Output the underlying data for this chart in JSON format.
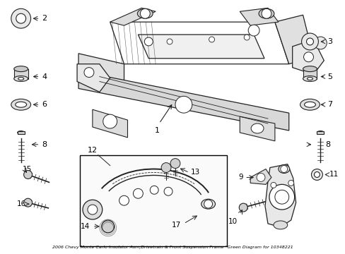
{
  "title": "2006 Chevy Monte Carlo Insulator Asm,Drivetrain & Front Suspension Frame *Green Diagram for 10348221",
  "bg_color": "#ffffff",
  "line_color": "#222222",
  "label_fontsize": 8,
  "small_fontsize": 7.5,
  "figsize": [
    4.89,
    3.6
  ],
  "dpi": 100
}
